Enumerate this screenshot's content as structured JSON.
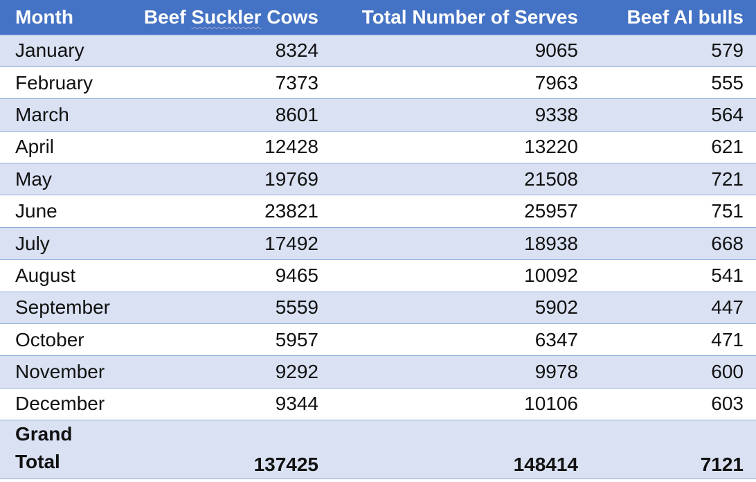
{
  "table": {
    "headers": [
      "Month",
      "Beef Suckler Cows",
      "Total Number of Serves",
      "Beef AI bulls"
    ],
    "header_parts": {
      "col2_pre": "Beef ",
      "col2_squiggle": "Suckler",
      "col2_post": " Cows"
    },
    "rows": [
      [
        "January",
        "8324",
        "9065",
        "579"
      ],
      [
        "February",
        "7373",
        "7963",
        "555"
      ],
      [
        "March",
        "8601",
        "9338",
        "564"
      ],
      [
        "April",
        "12428",
        "13220",
        "621"
      ],
      [
        "May",
        "19769",
        "21508",
        "721"
      ],
      [
        "June",
        "23821",
        "25957",
        "751"
      ],
      [
        "July",
        "17492",
        "18938",
        "668"
      ],
      [
        "August",
        "9465",
        "10092",
        "541"
      ],
      [
        "September",
        "5559",
        "5902",
        "447"
      ],
      [
        "October",
        "5957",
        "6347",
        "471"
      ],
      [
        "November",
        "9292",
        "9978",
        "600"
      ],
      [
        "December",
        "9344",
        "10106",
        "603"
      ]
    ],
    "total": {
      "label_line1": "Grand",
      "label_line2": "Total",
      "values": [
        "137425",
        "148414",
        "7121"
      ]
    }
  },
  "colors": {
    "header_bg": "#4472c4",
    "header_text": "#ffffff",
    "band_bg": "#d9e1f2",
    "row_border": "#8eaadb"
  }
}
